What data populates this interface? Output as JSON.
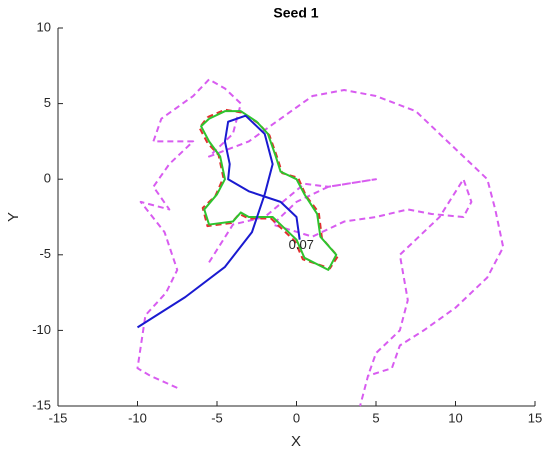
{
  "chart_data": {
    "type": "line",
    "title": "Seed 1",
    "x_label": "X",
    "y_label": "Y",
    "xlim": [
      -15,
      15
    ],
    "ylim": [
      -15,
      10
    ],
    "xticks": [
      -15,
      -10,
      -5,
      0,
      5,
      10,
      15
    ],
    "yticks": [
      -15,
      -10,
      -5,
      0,
      5,
      10
    ],
    "grid": false,
    "series": [
      {
        "color": "#d85cf0",
        "dash": true,
        "width": 2,
        "x": [
          -7.5,
          -9.2,
          -10,
          -9.5,
          -8.2,
          -7.5,
          -8.3,
          -9.8,
          -8,
          -9,
          -8,
          -6.5,
          -9,
          -8.5,
          -6.5,
          -5.5,
          -4.5,
          -3.5,
          -4,
          -5.5,
          -3,
          -1,
          1,
          3,
          5,
          7.5,
          9,
          10.5,
          12,
          12.5,
          13,
          12,
          10,
          8,
          6.5,
          6,
          4.5,
          4
        ],
        "values": [
          -13.8,
          -13,
          -12.5,
          -9,
          -7.5,
          -6,
          -3.5,
          -1.5,
          -2,
          -0.5,
          1,
          2.5,
          2.5,
          4,
          5.5,
          6.6,
          6,
          5,
          3,
          1.5,
          2.5,
          4,
          5.5,
          5.9,
          5.5,
          4.5,
          3,
          1.5,
          0,
          -2,
          -4.5,
          -6.5,
          -8.5,
          -10,
          -11,
          -12.5,
          -13,
          -15
        ]
      },
      {
        "color": "#d85cf0",
        "dash": true,
        "width": 2,
        "x": [
          -5.5,
          -4,
          -2,
          0.5,
          2,
          5,
          2,
          0,
          -1.5,
          1,
          3,
          5,
          7,
          8.5,
          10.5,
          11,
          10.5,
          9,
          7.5,
          6.5,
          7,
          6.5,
          5,
          4.5
        ],
        "values": [
          -5.5,
          -3,
          -2.5,
          -0.3,
          -0.5,
          0,
          -0.5,
          -1.5,
          -3,
          -3.8,
          -2.8,
          -2.5,
          -2,
          -2.3,
          -2.5,
          -1.5,
          0,
          -2.5,
          -4,
          -5,
          -8,
          -10,
          -11.5,
          -13
        ]
      },
      {
        "color": "#e03030",
        "dash": true,
        "width": 2,
        "x": [
          -5.6,
          -4.5,
          -3.4,
          -2.4,
          -1.7,
          -1.2,
          -0.9,
          0.1,
          0.6,
          1.4,
          1.6,
          2.6,
          2.1,
          0.4,
          -0.1,
          -1.1,
          -1.6,
          -3,
          -3.6,
          -4.1,
          -5.6,
          -5.9,
          -5.1,
          -4.6,
          -4.9,
          -5.6,
          -6.1,
          -5.6
        ],
        "values": [
          4.1,
          4.6,
          4.4,
          3.7,
          2.9,
          1.4,
          0.4,
          0.1,
          -1.1,
          -2.2,
          -3.9,
          -5.1,
          -5.9,
          -5.3,
          -4.1,
          -3.1,
          -2.6,
          -2.6,
          -2.3,
          -2.9,
          -3.1,
          -1.9,
          -1.1,
          0.1,
          1.6,
          2.4,
          3.4,
          4.1
        ]
      },
      {
        "color": "#2ec42e",
        "dash": false,
        "width": 2,
        "x": [
          -5.5,
          -4.5,
          -3.5,
          -2.5,
          -1.8,
          -1.3,
          -1,
          0,
          0.5,
          1.3,
          1.5,
          2.5,
          2,
          0.5,
          0,
          -1,
          -1.5,
          -3,
          -3.5,
          -4,
          -5.5,
          -5.8,
          -5,
          -4.5,
          -4.8,
          -5.5,
          -6,
          -5.5
        ],
        "values": [
          4,
          4.5,
          4.5,
          3.8,
          3,
          1.5,
          0.5,
          0,
          -1,
          -2.3,
          -3.8,
          -5,
          -6,
          -5.2,
          -4,
          -3,
          -2.5,
          -2.5,
          -2.2,
          -2.8,
          -3,
          -2,
          -1,
          0,
          1.5,
          2.5,
          3.5,
          4
        ]
      },
      {
        "color": "#1a1ad0",
        "dash": false,
        "width": 2,
        "x": [
          -10,
          -7,
          -4.5,
          -2.8,
          -2,
          -1.5,
          -2,
          -3.2,
          -4.3,
          -4.5,
          -4.2,
          -4.3,
          -3,
          -1,
          0,
          0.2
        ],
        "values": [
          -9.8,
          -7.8,
          -5.8,
          -3.5,
          -1,
          1,
          3,
          4.2,
          3.8,
          2.5,
          1,
          0,
          -0.8,
          -1.5,
          -2.5,
          -4
        ]
      }
    ],
    "annotations": [
      {
        "text": "0.07",
        "x": 0.3,
        "y": -4.4
      }
    ]
  }
}
